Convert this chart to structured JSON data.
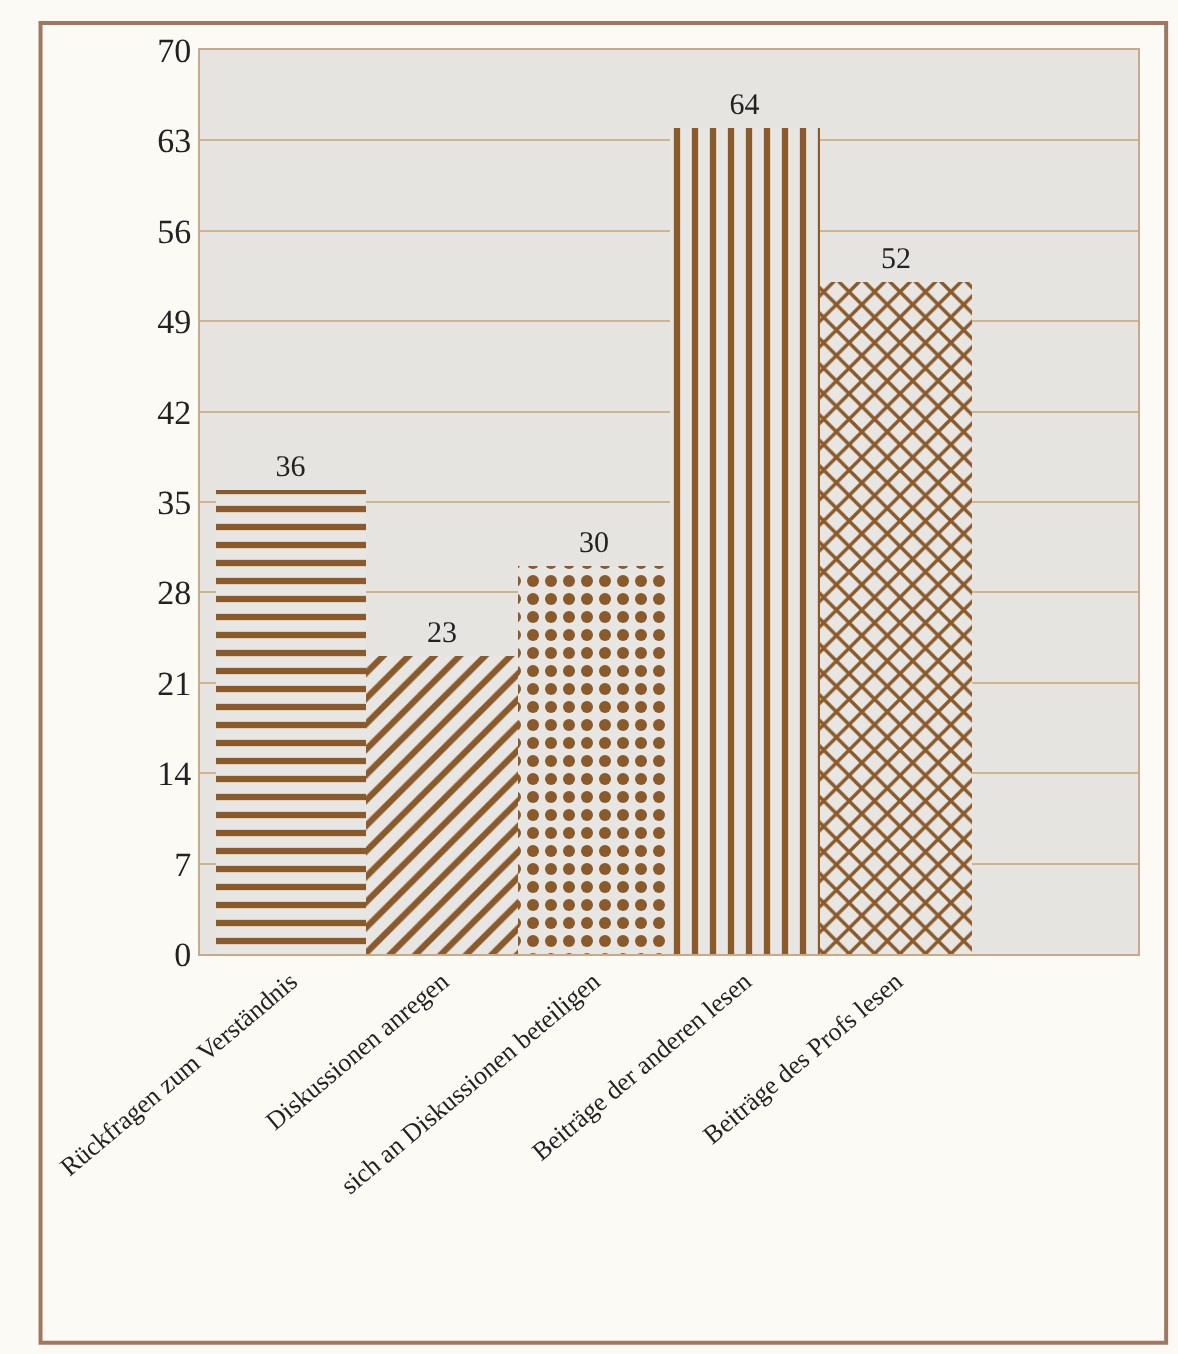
{
  "chart_data": {
    "type": "bar",
    "categories": [
      "Rückfragen zum Verständnis",
      "Diskussionen anregen",
      "sich an Diskussionen beteiligen",
      "Beiträge der anderen lesen",
      "Beiträge des Profs lesen"
    ],
    "values": [
      36,
      23,
      30,
      64,
      52
    ],
    "color": "#8b5a2b",
    "ylim": [
      0,
      70
    ],
    "yticks": [
      0,
      7,
      14,
      21,
      28,
      35,
      42,
      49,
      56,
      63,
      70
    ],
    "grid": "y",
    "data_labels": true
  }
}
